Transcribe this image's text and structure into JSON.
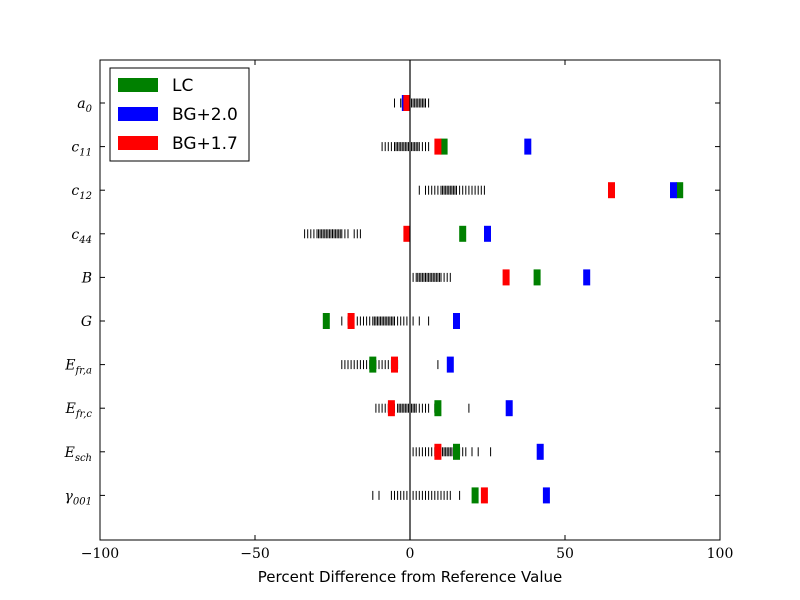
{
  "chart_data": {
    "type": "bar",
    "orientation": "horizontal-markers",
    "xlabel": "Percent Difference from Reference Value",
    "xlim": [
      -100,
      100
    ],
    "xticks": [
      -100,
      -50,
      0,
      50,
      100
    ],
    "xtick_labels": [
      "−100",
      "−50",
      "0",
      "50",
      "100"
    ],
    "categories": [
      {
        "base": "a",
        "sub": "0"
      },
      {
        "base": "c",
        "sub": "11"
      },
      {
        "base": "c",
        "sub": "12"
      },
      {
        "base": "c",
        "sub": "44"
      },
      {
        "base": "B",
        "sub": ""
      },
      {
        "base": "G",
        "sub": ""
      },
      {
        "base": "E",
        "sub": "fr,a"
      },
      {
        "base": "E",
        "sub": "fr,c"
      },
      {
        "base": "E",
        "sub": "sch"
      },
      {
        "base": "γ",
        "sub": "001"
      }
    ],
    "legend": {
      "placement": "upper-left"
    },
    "series": [
      {
        "name": "LC",
        "color": "#008000",
        "values": [
          -1,
          11,
          87,
          17,
          41,
          -27,
          -12,
          9,
          15,
          21
        ]
      },
      {
        "name": "BG+2.0",
        "color": "#0000ff",
        "values": [
          -1.5,
          38,
          85,
          25,
          57,
          15,
          13,
          32,
          42,
          44
        ]
      },
      {
        "name": "BG+1.7",
        "color": "#ff0000",
        "values": [
          -1,
          9,
          65,
          -1,
          31,
          -19,
          -5,
          -6,
          9,
          24
        ]
      }
    ],
    "distributions": [
      [
        -5,
        -3,
        -2.5,
        -2,
        -1.5,
        -1,
        -0.5,
        0,
        0.5,
        1,
        1.5,
        2,
        2.5,
        3,
        3.5,
        4,
        4.5,
        5,
        6
      ],
      [
        -9,
        -8,
        -7,
        -6,
        -5,
        -4.5,
        -4,
        -3.5,
        -3,
        -2.5,
        -2,
        -1.5,
        -1,
        -0.5,
        0,
        0.5,
        1,
        1.5,
        2,
        2.5,
        3,
        4,
        5,
        6
      ],
      [
        3,
        5,
        6,
        7,
        8,
        9,
        10,
        10.5,
        11,
        11.5,
        12,
        12.5,
        13,
        13.5,
        14,
        14.5,
        15,
        16,
        17,
        18,
        19,
        20,
        21,
        22,
        23,
        24
      ],
      [
        -34,
        -33,
        -32,
        -31,
        -30,
        -29.5,
        -29,
        -28.5,
        -28,
        -27.5,
        -27,
        -26.5,
        -26,
        -25.5,
        -25,
        -24.5,
        -24,
        -23.5,
        -23,
        -22.5,
        -22,
        -21,
        -20,
        -18,
        -17,
        -16
      ],
      [
        0,
        1,
        2,
        2.5,
        3,
        3.5,
        4,
        4.5,
        5,
        5.5,
        6,
        6.5,
        7,
        7.5,
        8,
        8.5,
        9,
        9.5,
        10,
        11,
        12,
        13
      ],
      [
        -22,
        -20,
        -17,
        -16,
        -15,
        -14,
        -13,
        -12,
        -11.5,
        -11,
        -10.5,
        -10,
        -9.5,
        -9,
        -8.5,
        -8,
        -7.5,
        -7,
        -6.5,
        -6,
        -5.5,
        -5,
        -4,
        -3,
        -2,
        -1,
        0,
        1,
        3,
        6
      ],
      [
        -22,
        -21,
        -20,
        -19,
        -18,
        -17,
        -16,
        -15,
        -14,
        -13,
        -12,
        -11,
        -10,
        -9,
        -8,
        -7,
        -6,
        -4,
        0,
        9
      ],
      [
        -11,
        -10,
        -9,
        -8,
        -7,
        -6,
        -5,
        -4,
        -3.5,
        -3,
        -2.5,
        -2,
        -1.5,
        -1,
        -0.5,
        0,
        0.5,
        1,
        1.5,
        2,
        3,
        4,
        5,
        6,
        8,
        19
      ],
      [
        0,
        1,
        2,
        3,
        4,
        5,
        6,
        7,
        8,
        9,
        10,
        10.5,
        11,
        11.5,
        12,
        12.5,
        13,
        13.5,
        14,
        14.5,
        15,
        16,
        17,
        18,
        20,
        22,
        26
      ],
      [
        -12,
        -10,
        -6,
        -5,
        -4,
        -3,
        -2,
        -1,
        0,
        1,
        2,
        3,
        4,
        5,
        6,
        7,
        8,
        9,
        10,
        11,
        12,
        13,
        16
      ]
    ]
  }
}
